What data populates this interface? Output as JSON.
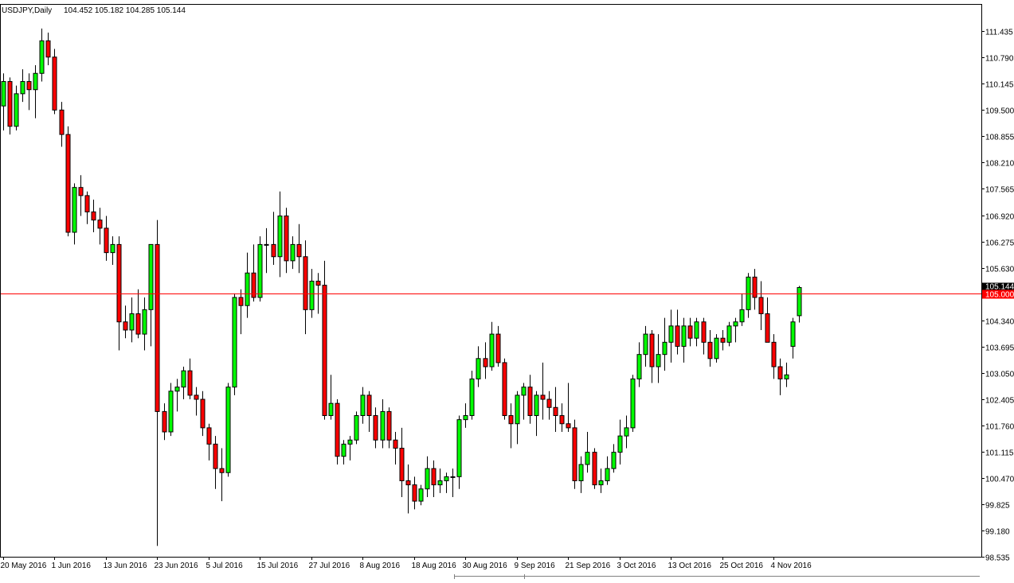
{
  "header": {
    "symbol_period": "USDJPY,Daily",
    "ohlc": "104.452 105.182 104.285 105.144"
  },
  "chart_data": {
    "type": "candlestick",
    "symbol": "USDJPY",
    "period": "Daily",
    "ylim": [
      98.535,
      111.83
    ],
    "yticks": [
      "111.435",
      "110.790",
      "110.145",
      "109.500",
      "108.855",
      "108.210",
      "107.565",
      "106.920",
      "106.275",
      "105.630",
      "104.340",
      "103.695",
      "103.050",
      "102.405",
      "101.760",
      "101.115",
      "100.470",
      "99.825",
      "99.180",
      "98.535"
    ],
    "xticks": [
      {
        "label": "20 May 2016",
        "index": 0
      },
      {
        "label": "1 Jun 2016",
        "index": 8
      },
      {
        "label": "13 Jun 2016",
        "index": 16
      },
      {
        "label": "23 Jun 2016",
        "index": 24
      },
      {
        "label": "5 Jul 2016",
        "index": 32
      },
      {
        "label": "15 Jul 2016",
        "index": 40
      },
      {
        "label": "27 Jul 2016",
        "index": 48
      },
      {
        "label": "8 Aug 2016",
        "index": 56
      },
      {
        "label": "18 Aug 2016",
        "index": 64
      },
      {
        "label": "30 Aug 2016",
        "index": 72
      },
      {
        "label": "9 Sep 2016",
        "index": 80
      },
      {
        "label": "21 Sep 2016",
        "index": 88
      },
      {
        "label": "3 Oct 2016",
        "index": 96
      },
      {
        "label": "13 Oct 2016",
        "index": 104
      },
      {
        "label": "25 Oct 2016",
        "index": 112
      },
      {
        "label": "4 Nov 2016",
        "index": 120
      }
    ],
    "reference_line": {
      "value": 105.0,
      "label": "105.000",
      "color": "#ff0000"
    },
    "last_price": {
      "value": 105.144,
      "label": "105.144"
    },
    "colors": {
      "up": "#00ff00",
      "down": "#ff0000",
      "outline": "#000000",
      "wick": "#000000"
    },
    "grid": false,
    "ohlc": [
      [
        109.6,
        110.4,
        109.0,
        110.2
      ],
      [
        110.2,
        110.3,
        108.9,
        109.1
      ],
      [
        109.1,
        110.1,
        109.0,
        109.9
      ],
      [
        109.9,
        110.5,
        109.7,
        110.2
      ],
      [
        110.2,
        110.4,
        109.5,
        110.0
      ],
      [
        110.0,
        110.6,
        109.3,
        110.4
      ],
      [
        110.4,
        111.5,
        110.2,
        111.2
      ],
      [
        111.2,
        111.4,
        110.6,
        110.8
      ],
      [
        110.8,
        111.0,
        109.4,
        109.5
      ],
      [
        109.5,
        109.7,
        108.6,
        108.9
      ],
      [
        108.9,
        109.1,
        106.4,
        106.5
      ],
      [
        106.5,
        107.7,
        106.2,
        107.6
      ],
      [
        107.6,
        107.9,
        106.9,
        107.4
      ],
      [
        107.4,
        107.5,
        106.7,
        107.0
      ],
      [
        107.0,
        107.3,
        106.5,
        106.8
      ],
      [
        106.8,
        107.1,
        106.2,
        106.6
      ],
      [
        106.6,
        106.9,
        105.8,
        106.0
      ],
      [
        106.0,
        106.4,
        105.7,
        106.2
      ],
      [
        106.2,
        106.4,
        103.6,
        104.3
      ],
      [
        104.3,
        104.7,
        103.9,
        104.1
      ],
      [
        104.1,
        104.9,
        103.8,
        104.5
      ],
      [
        104.5,
        105.1,
        103.9,
        104.0
      ],
      [
        104.0,
        104.9,
        103.6,
        104.6
      ],
      [
        104.6,
        106.2,
        103.7,
        106.2
      ],
      [
        106.2,
        106.8,
        98.8,
        102.1
      ],
      [
        102.1,
        102.3,
        101.4,
        101.6
      ],
      [
        101.6,
        102.8,
        101.5,
        102.6
      ],
      [
        102.6,
        102.9,
        102.1,
        102.7
      ],
      [
        102.7,
        103.2,
        102.4,
        103.1
      ],
      [
        103.1,
        103.4,
        102.4,
        102.5
      ],
      [
        102.5,
        102.7,
        102.0,
        102.4
      ],
      [
        102.4,
        102.6,
        101.5,
        101.7
      ],
      [
        101.7,
        101.8,
        100.9,
        101.3
      ],
      [
        101.3,
        101.5,
        100.2,
        100.7
      ],
      [
        100.7,
        101.2,
        99.9,
        100.6
      ],
      [
        100.6,
        102.8,
        100.5,
        102.7
      ],
      [
        102.7,
        105.0,
        102.5,
        104.9
      ],
      [
        104.9,
        105.1,
        104.0,
        104.7
      ],
      [
        104.7,
        106.0,
        104.4,
        105.5
      ],
      [
        105.5,
        106.2,
        104.8,
        104.9
      ],
      [
        104.9,
        106.4,
        104.8,
        106.2
      ],
      [
        106.2,
        106.6,
        105.5,
        106.2
      ],
      [
        106.2,
        107.0,
        105.7,
        105.9
      ],
      [
        105.9,
        107.5,
        105.4,
        106.9
      ],
      [
        106.9,
        107.1,
        105.5,
        105.8
      ],
      [
        105.8,
        106.4,
        105.6,
        106.2
      ],
      [
        106.2,
        106.7,
        105.5,
        105.9
      ],
      [
        105.9,
        106.3,
        104.0,
        104.6
      ],
      [
        104.6,
        105.6,
        104.4,
        105.3
      ],
      [
        105.3,
        105.5,
        104.5,
        105.2
      ],
      [
        105.2,
        105.8,
        101.9,
        102.0
      ],
      [
        102.0,
        103.0,
        101.9,
        102.3
      ],
      [
        102.3,
        102.4,
        100.8,
        101.0
      ],
      [
        101.0,
        101.4,
        100.8,
        101.3
      ],
      [
        101.3,
        101.5,
        100.9,
        101.4
      ],
      [
        101.4,
        102.1,
        101.3,
        102.0
      ],
      [
        102.0,
        102.7,
        101.8,
        102.5
      ],
      [
        102.5,
        102.6,
        101.6,
        102.0
      ],
      [
        102.0,
        102.2,
        101.2,
        101.4
      ],
      [
        101.4,
        102.4,
        101.2,
        102.1
      ],
      [
        102.1,
        102.2,
        101.2,
        101.4
      ],
      [
        101.4,
        101.6,
        100.8,
        101.2
      ],
      [
        101.2,
        101.7,
        100.0,
        100.4
      ],
      [
        100.4,
        100.8,
        99.6,
        100.3
      ],
      [
        100.3,
        100.5,
        99.7,
        99.9
      ],
      [
        99.9,
        100.3,
        99.8,
        100.2
      ],
      [
        100.2,
        101.0,
        100.0,
        100.7
      ],
      [
        100.7,
        100.9,
        100.0,
        100.3
      ],
      [
        100.3,
        100.7,
        100.1,
        100.4
      ],
      [
        100.4,
        100.6,
        100.1,
        100.5
      ],
      [
        100.5,
        100.7,
        100.0,
        100.5
      ],
      [
        100.5,
        102.0,
        100.2,
        101.9
      ],
      [
        101.9,
        102.3,
        101.7,
        102.0
      ],
      [
        102.0,
        103.1,
        101.9,
        102.9
      ],
      [
        102.9,
        103.7,
        102.7,
        103.4
      ],
      [
        103.4,
        103.8,
        102.9,
        103.2
      ],
      [
        103.2,
        104.3,
        103.1,
        104.0
      ],
      [
        104.0,
        104.2,
        103.2,
        103.3
      ],
      [
        103.3,
        103.4,
        101.9,
        102.0
      ],
      [
        102.0,
        102.3,
        101.2,
        101.8
      ],
      [
        101.8,
        102.6,
        101.3,
        102.5
      ],
      [
        102.5,
        102.8,
        101.9,
        102.7
      ],
      [
        102.7,
        103.0,
        101.8,
        102.0
      ],
      [
        102.0,
        102.6,
        101.5,
        102.5
      ],
      [
        102.5,
        103.3,
        101.9,
        102.4
      ],
      [
        102.4,
        102.6,
        101.9,
        102.2
      ],
      [
        102.2,
        102.7,
        101.6,
        102.0
      ],
      [
        102.0,
        102.3,
        101.6,
        101.8
      ],
      [
        101.8,
        102.8,
        101.6,
        101.7
      ],
      [
        101.7,
        101.9,
        100.2,
        100.4
      ],
      [
        100.4,
        101.0,
        100.1,
        100.8
      ],
      [
        100.8,
        101.6,
        100.6,
        101.1
      ],
      [
        101.1,
        101.2,
        100.2,
        100.3
      ],
      [
        100.3,
        100.7,
        100.1,
        100.4
      ],
      [
        100.4,
        101.0,
        100.3,
        100.7
      ],
      [
        100.7,
        101.3,
        100.6,
        101.1
      ],
      [
        101.1,
        101.9,
        100.8,
        101.5
      ],
      [
        101.5,
        102.0,
        101.2,
        101.7
      ],
      [
        101.7,
        103.0,
        101.6,
        102.9
      ],
      [
        102.9,
        103.8,
        102.7,
        103.5
      ],
      [
        103.5,
        104.2,
        103.2,
        104.0
      ],
      [
        104.0,
        104.1,
        102.8,
        103.2
      ],
      [
        103.2,
        104.0,
        102.8,
        103.5
      ],
      [
        103.5,
        104.4,
        103.1,
        103.8
      ],
      [
        103.8,
        104.6,
        103.3,
        104.2
      ],
      [
        104.2,
        104.6,
        103.5,
        103.7
      ],
      [
        103.7,
        104.4,
        103.3,
        104.2
      ],
      [
        104.2,
        104.4,
        103.7,
        103.9
      ],
      [
        103.9,
        104.4,
        103.7,
        104.3
      ],
      [
        104.3,
        104.4,
        103.5,
        103.8
      ],
      [
        103.8,
        104.1,
        103.2,
        103.4
      ],
      [
        103.4,
        104.0,
        103.3,
        103.9
      ],
      [
        103.9,
        104.1,
        103.6,
        103.8
      ],
      [
        103.8,
        104.3,
        103.7,
        104.2
      ],
      [
        104.2,
        104.4,
        103.8,
        104.3
      ],
      [
        104.3,
        105.0,
        104.2,
        104.6
      ],
      [
        104.6,
        105.5,
        104.4,
        105.4
      ],
      [
        105.4,
        105.6,
        104.6,
        104.9
      ],
      [
        104.9,
        105.3,
        104.1,
        104.5
      ],
      [
        104.5,
        104.9,
        103.8,
        103.8
      ],
      [
        103.8,
        104.0,
        102.9,
        103.2
      ],
      [
        103.2,
        103.4,
        102.5,
        102.9
      ],
      [
        102.9,
        103.3,
        102.7,
        103.0
      ],
      [
        103.7,
        104.4,
        103.4,
        104.3
      ],
      [
        104.452,
        105.182,
        104.285,
        105.144
      ]
    ]
  }
}
